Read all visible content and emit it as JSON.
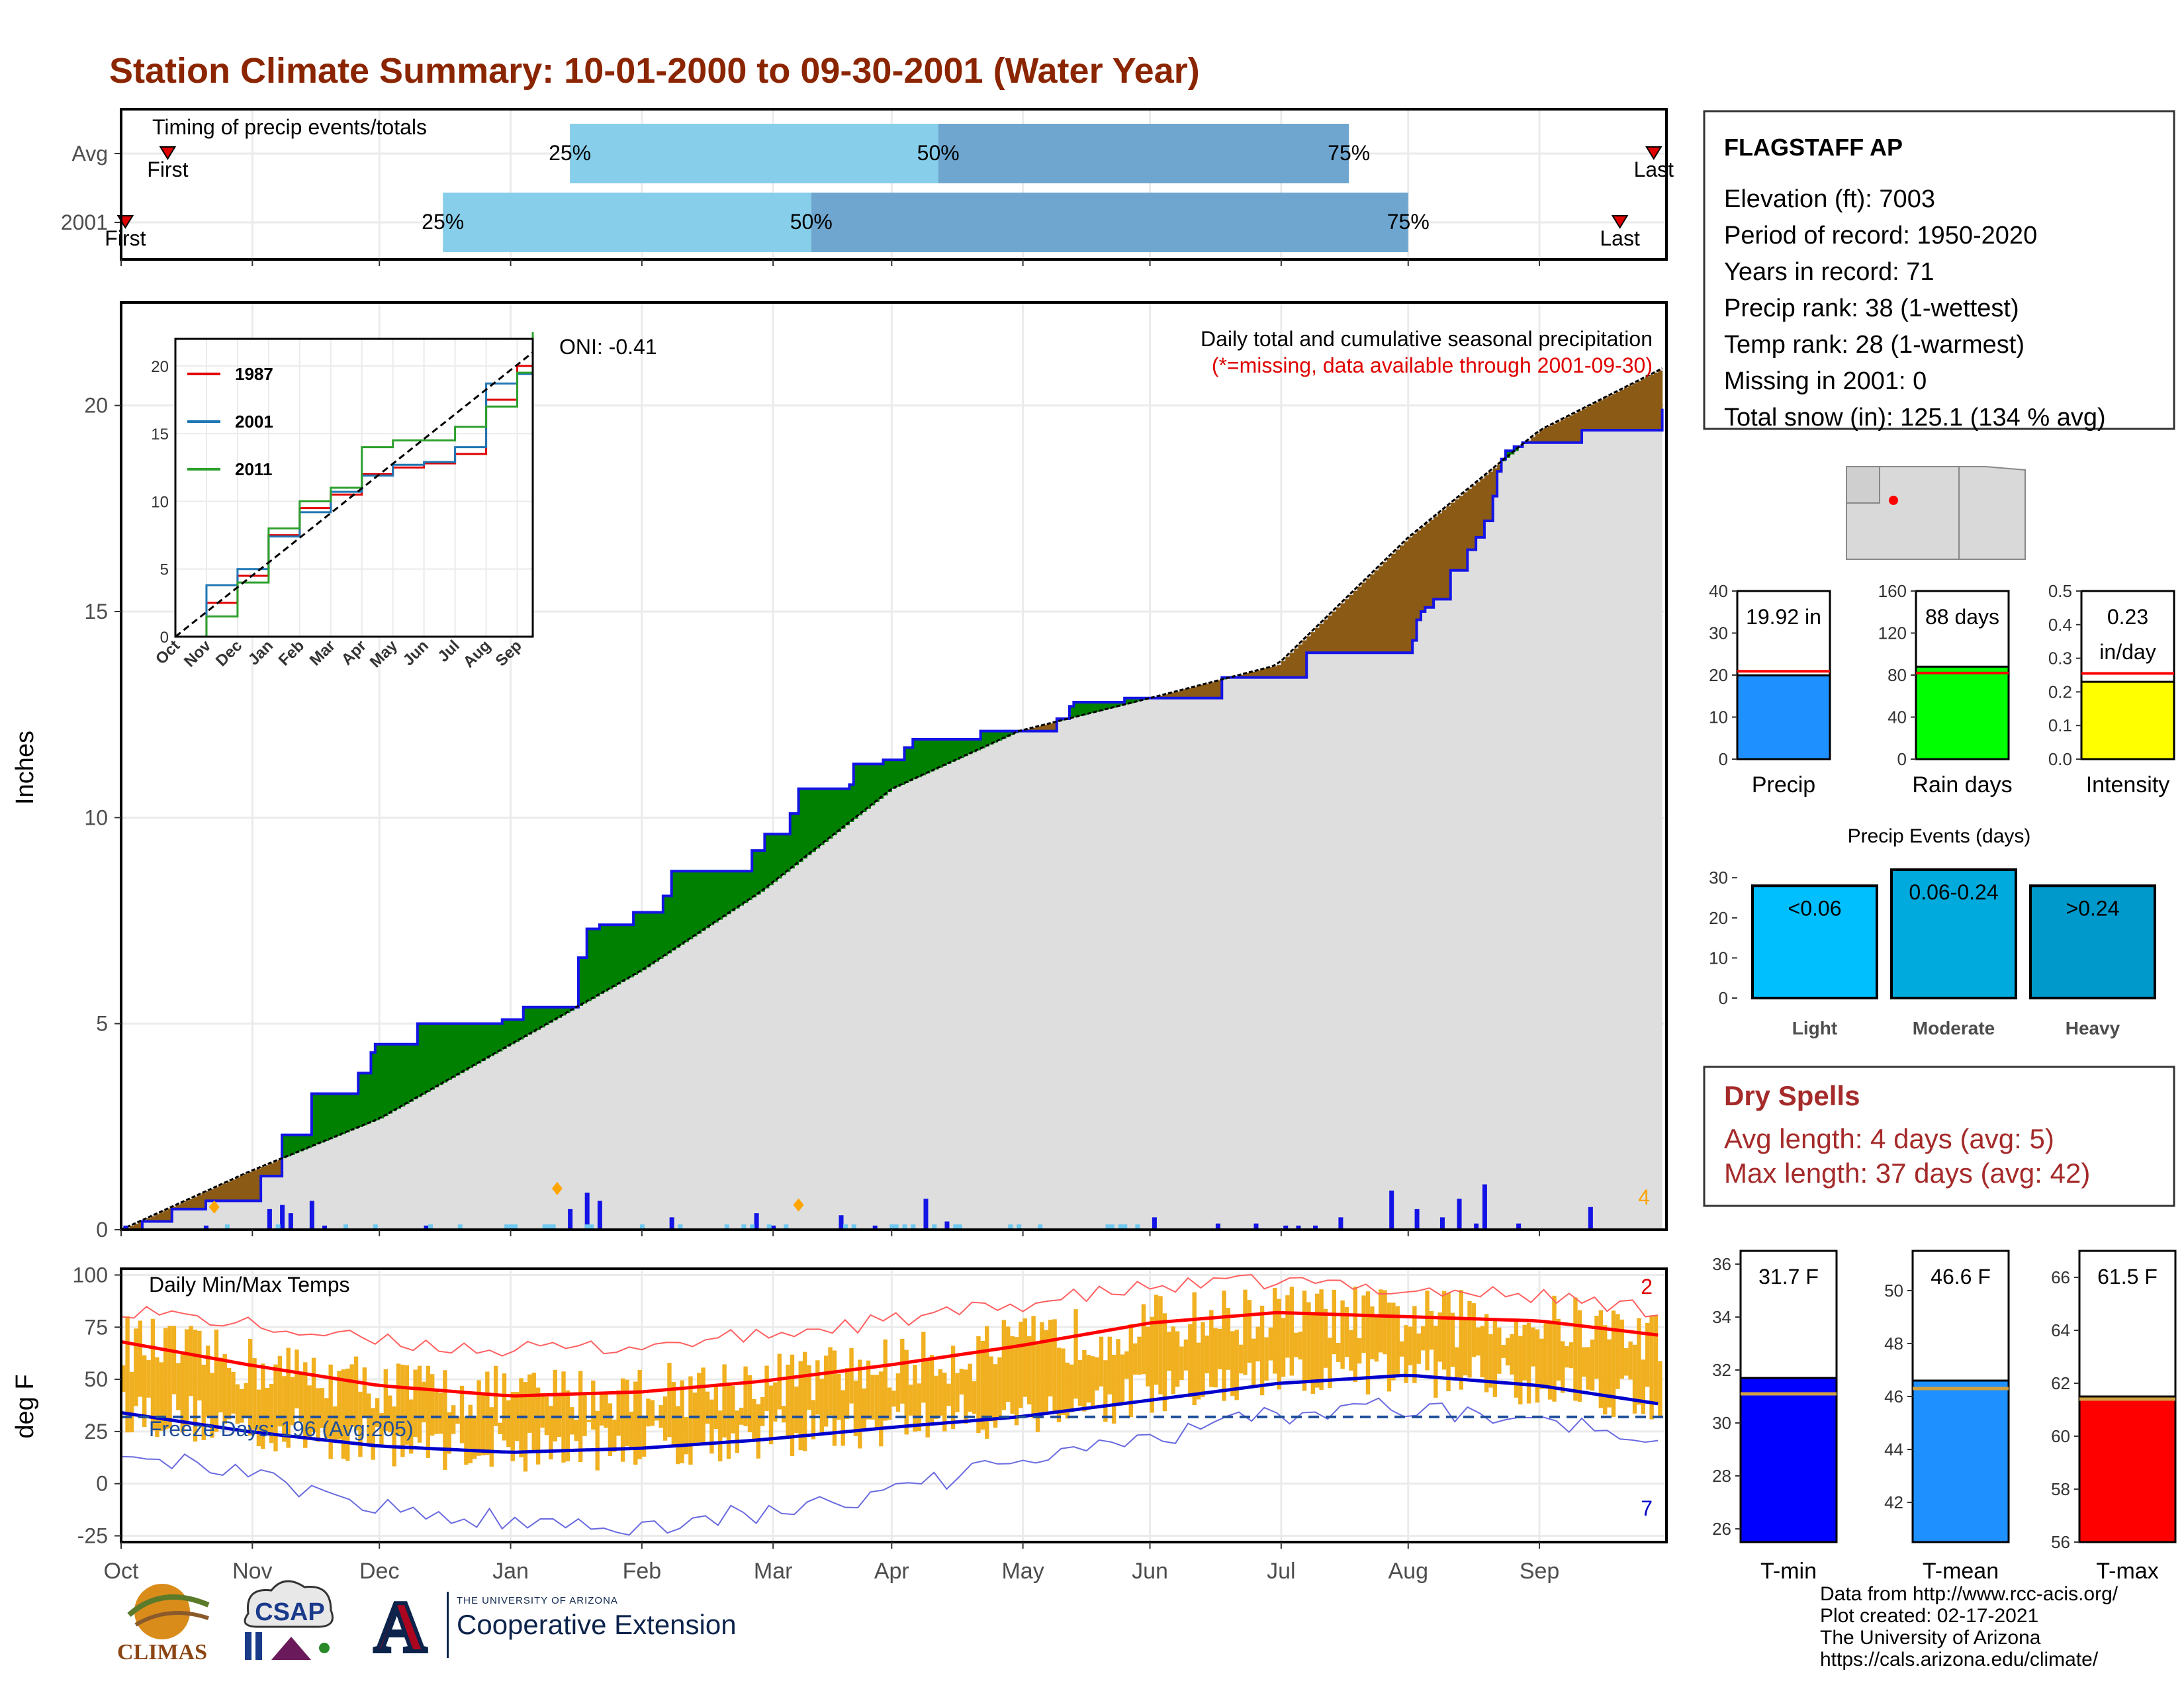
{
  "page": {
    "title": "Station Climate Summary: 10-01-2000 to 09-30-2001 (Water Year)"
  },
  "colors": {
    "title": "#8b2500",
    "green": "#008000",
    "brown": "#8b5a14",
    "blue": "#1414e6",
    "orange": "#f0b020",
    "red": "#ff0000",
    "lightblue": "#87ceeb",
    "steelblue": "#6ea6cf",
    "gray": "#dedede",
    "dryspell": "#a52a2a"
  },
  "timing": {
    "label": "Timing of precip events/totals",
    "rows": [
      {
        "label": "Avg",
        "first_label": "First",
        "last_label": "Last",
        "first": "Oct 12",
        "last": "Sep 28",
        "p25": "Jan 15",
        "p50": "Apr 12",
        "p75": "Jul 17"
      },
      {
        "label": "2001",
        "first_label": "First",
        "last_label": "Last",
        "first": "Oct 2",
        "last": "Sep 20",
        "p25": "Dec 16",
        "p50": "Mar 10",
        "p75": "Jul 31"
      }
    ],
    "pct_labels": [
      "25%",
      "50%",
      "75%"
    ]
  },
  "stats": {
    "station": "FLAGSTAFF AP",
    "lines": [
      "Elevation (ft): 7003",
      "Period of record: 1950-2020",
      "Years in record: 71",
      "Precip rank: 38 (1-wettest)",
      "Temp rank: 28 (1-warmest)",
      "Missing in 2001: 0",
      "Total snow (in): 125.1 (134 % avg)"
    ]
  },
  "precip_panel": {
    "ylabel": "Inches",
    "title_line1": "Daily total and cumulative seasonal precipitation",
    "title_line2": "(*=missing, data available through 2001-09-30)",
    "oni": "ONI: -0.41",
    "corner_count": "4"
  },
  "temp_panel": {
    "ylabel": "deg F",
    "title": "Daily Min/Max Temps",
    "freeze": "Freeze Days: 196 (Avg:205)",
    "count_high": "2",
    "count_low": "7"
  },
  "inset": {
    "legend": [
      "1987",
      "2001",
      "2011"
    ],
    "x_ticks": [
      "Oct",
      "Nov",
      "Dec",
      "Jan",
      "Feb",
      "Mar",
      "Apr",
      "May",
      "Jun",
      "Jul",
      "Aug",
      "Sep"
    ],
    "y_ticks": [
      "0",
      "5",
      "10",
      "15",
      "20"
    ]
  },
  "mini_bars": [
    {
      "label": "Precip",
      "value_text": "19.92 in",
      "value": 19.92,
      "avg": 20.9,
      "ymax": 40,
      "ticks": [
        "0",
        "10",
        "20",
        "30",
        "40"
      ],
      "color": "#1e90ff"
    },
    {
      "label": "Rain days",
      "value_text": "88 days",
      "value": 88,
      "avg": 82,
      "ymax": 160,
      "ticks": [
        "0",
        "40",
        "80",
        "120",
        "160"
      ],
      "color": "#00ff00"
    },
    {
      "label": "Intensity",
      "value_text": "0.23",
      "value_text2": "in/day",
      "value": 0.23,
      "avg": 0.255,
      "ymax": 0.5,
      "ticks": [
        "0.0",
        "0.1",
        "0.2",
        "0.3",
        "0.4",
        "0.5"
      ],
      "color": "#ffff00"
    }
  ],
  "events": {
    "title": "Precip Events (days)",
    "bars": [
      {
        "label": "Light",
        "range": "<0.06",
        "value": 28,
        "color": "#00bfff"
      },
      {
        "label": "Moderate",
        "range": "0.06-0.24",
        "value": 32,
        "color": "#00aadd"
      },
      {
        "label": "Heavy",
        "range": ">0.24",
        "value": 28,
        "color": "#0099cc"
      }
    ],
    "ticks": [
      "0",
      "10",
      "20",
      "30"
    ]
  },
  "dry_spells": {
    "title": "Dry Spells",
    "avg_line": "Avg length: 4 days (avg: 5)",
    "max_line": "Max length: 37 days (avg: 42)"
  },
  "temp_bars": [
    {
      "label": "T-min",
      "value_text": "31.7 F",
      "value": 31.7,
      "avg": 31.1,
      "ymin": 25.5,
      "ymax": 36.5,
      "ticks": [
        "26",
        "28",
        "30",
        "32",
        "34",
        "36"
      ],
      "color": "#0000ff"
    },
    {
      "label": "T-mean",
      "value_text": "46.6 F",
      "value": 46.6,
      "avg": 46.3,
      "ymin": 40.5,
      "ymax": 51.5,
      "ticks": [
        "42",
        "44",
        "46",
        "48",
        "50"
      ],
      "color": "#1e90ff"
    },
    {
      "label": "T-max",
      "value_text": "61.5 F",
      "value": 61.5,
      "avg": 61.4,
      "ymin": 56,
      "ymax": 67,
      "ticks": [
        "56",
        "58",
        "60",
        "62",
        "64",
        "66"
      ],
      "color": "#ff0000"
    }
  ],
  "footer": {
    "lines": [
      "Data from http://www.rcc-acis.org/",
      "Plot created: 02-17-2021",
      "The University of Arizona",
      "https://cals.arizona.edu/climate/"
    ],
    "logo1": "CLIMAS",
    "logo2": "CSAP",
    "logo3": "A",
    "coop_small": "THE UNIVERSITY OF ARIZONA",
    "coop_big": "Cooperative Extension"
  },
  "chart_data": [
    {
      "type": "line",
      "title": "Daily total and cumulative seasonal precipitation",
      "ylabel": "Inches",
      "ylim": [
        0,
        22.5
      ],
      "x_ticks": [
        "Oct",
        "Nov",
        "Dec",
        "Jan",
        "Feb",
        "Mar",
        "Apr",
        "May",
        "Jun",
        "Jul",
        "Aug",
        "Sep"
      ],
      "y_ticks": [
        0,
        5,
        10,
        15,
        20
      ],
      "series": [
        {
          "name": "2001",
          "day": [
            0,
            5,
            12,
            20,
            33,
            38,
            45,
            56,
            59,
            60,
            70,
            88,
            90,
            95,
            108,
            110,
            113,
            121,
            128,
            130,
            149,
            152,
            158,
            160,
            172,
            173,
            180,
            185,
            187,
            203,
            221,
            224,
            225,
            237,
            245,
            258,
            260,
            279,
            280,
            305,
            306,
            307,
            308,
            310,
            314,
            318,
            320,
            322,
            324,
            325,
            326,
            327,
            328,
            329,
            330,
            331,
            333,
            335,
            345,
            364
          ],
          "values": [
            0.0,
            0.2,
            0.5,
            0.7,
            1.3,
            2.3,
            3.3,
            3.8,
            4.3,
            4.5,
            5.0,
            5.0,
            5.1,
            5.4,
            6.6,
            7.3,
            7.4,
            7.7,
            8.1,
            8.7,
            9.2,
            9.6,
            10.1,
            10.7,
            10.8,
            11.3,
            11.4,
            11.7,
            11.9,
            12.1,
            12.4,
            12.7,
            12.8,
            12.9,
            12.9,
            12.9,
            13.4,
            13.4,
            14.0,
            14.3,
            14.8,
            15.0,
            15.1,
            15.3,
            16.0,
            16.5,
            16.8,
            17.2,
            17.8,
            18.4,
            18.7,
            18.9,
            18.9,
            19.0,
            19.0,
            19.1,
            19.1,
            19.1,
            19.4,
            19.92
          ]
        },
        {
          "name": "Average",
          "day": [
            0,
            30,
            61,
            92,
            123,
            151,
            182,
            212,
            243,
            273,
            304,
            335,
            364
          ],
          "values": [
            0.0,
            1.4,
            2.7,
            4.5,
            6.3,
            8.2,
            10.7,
            12.1,
            12.9,
            13.7,
            16.8,
            19.4,
            20.9
          ]
        }
      ],
      "daily_precip": {
        "day": [
          1,
          20,
          35,
          38,
          40,
          45,
          48,
          72,
          106,
          110,
          113,
          130,
          150,
          154,
          170,
          178,
          190,
          195,
          210,
          244,
          259,
          268,
          275,
          278,
          282,
          288,
          300,
          306,
          312,
          316,
          320,
          322,
          330,
          347
        ],
        "values": [
          0.1,
          0.1,
          0.5,
          0.6,
          0.4,
          0.7,
          0.1,
          0.1,
          0.5,
          0.9,
          0.7,
          0.3,
          0.4,
          0.1,
          0.35,
          0.1,
          0.75,
          0.2,
          0.1,
          0.3,
          0.15,
          0.15,
          0.1,
          0.1,
          0.1,
          0.3,
          0.95,
          0.5,
          0.3,
          0.75,
          0.15,
          1.1,
          0.15,
          0.55
        ]
      },
      "markers": {
        "day": [
          22,
          103,
          160
        ],
        "values": [
          0.55,
          1.0,
          0.6
        ]
      }
    },
    {
      "type": "line",
      "title": "Daily Min/Max Temps",
      "ylabel": "deg F",
      "ylim": [
        -28,
        103
      ],
      "y_ticks": [
        -25,
        0,
        25,
        50,
        75,
        100
      ],
      "freeze_line": 32,
      "series": [
        {
          "name": "Normal max",
          "day": [
            0,
            30,
            61,
            92,
            123,
            151,
            182,
            212,
            243,
            273,
            304,
            335,
            364
          ],
          "values": [
            68,
            57,
            47,
            42,
            44,
            49,
            57,
            66,
            77,
            82,
            80,
            78,
            71
          ]
        },
        {
          "name": "Normal min",
          "day": [
            0,
            30,
            61,
            92,
            123,
            151,
            182,
            212,
            243,
            273,
            304,
            335,
            364
          ],
          "values": [
            34,
            25,
            18,
            15,
            17,
            21,
            27,
            32,
            40,
            48,
            52,
            47,
            38
          ]
        },
        {
          "name": "Record max",
          "day": [
            0,
            30,
            61,
            92,
            123,
            151,
            182,
            212,
            243,
            273,
            304,
            335,
            364
          ],
          "values": [
            84,
            76,
            68,
            64,
            66,
            71,
            78,
            86,
            94,
            97,
            93,
            90,
            83
          ]
        },
        {
          "name": "Record min",
          "day": [
            0,
            30,
            61,
            92,
            123,
            151,
            182,
            212,
            243,
            273,
            304,
            335,
            364
          ],
          "values": [
            18,
            3,
            -11,
            -18,
            -20,
            -14,
            -4,
            10,
            22,
            33,
            37,
            30,
            24
          ]
        }
      ]
    },
    {
      "type": "line",
      "title": "",
      "x_ticks": [
        "Oct",
        "Nov",
        "Dec",
        "Jan",
        "Feb",
        "Mar",
        "Apr",
        "May",
        "Jun",
        "Jul",
        "Aug",
        "Sep"
      ],
      "ylim": [
        0,
        22
      ],
      "y_ticks": [
        0,
        5,
        10,
        15,
        20
      ],
      "series": [
        {
          "name": "1987",
          "month": [
            0,
            1,
            2,
            3,
            4,
            5,
            6,
            7,
            8,
            9,
            10,
            11,
            11.5
          ],
          "values": [
            0,
            2.5,
            4.5,
            7.5,
            9.5,
            10.5,
            12,
            12.5,
            12.8,
            13.5,
            17.5,
            20,
            21
          ]
        },
        {
          "name": "2001",
          "month": [
            0,
            1,
            2,
            3,
            4,
            5,
            6,
            7,
            8,
            9,
            10,
            11,
            11.5
          ],
          "values": [
            0,
            3.8,
            5,
            7.4,
            9.2,
            10.7,
            11.9,
            12.7,
            12.9,
            14,
            18.7,
            19.4,
            21
          ]
        },
        {
          "name": "2011",
          "month": [
            0,
            1,
            2,
            3,
            4,
            5,
            6,
            7,
            8,
            9,
            10,
            11,
            11.5
          ],
          "values": [
            0,
            1.5,
            4,
            8,
            10,
            11,
            14,
            14.5,
            14.5,
            15.5,
            17,
            19.5,
            22.5
          ]
        },
        {
          "name": "Average",
          "month": [
            0,
            11.5
          ],
          "values": [
            0,
            21
          ]
        }
      ]
    }
  ]
}
